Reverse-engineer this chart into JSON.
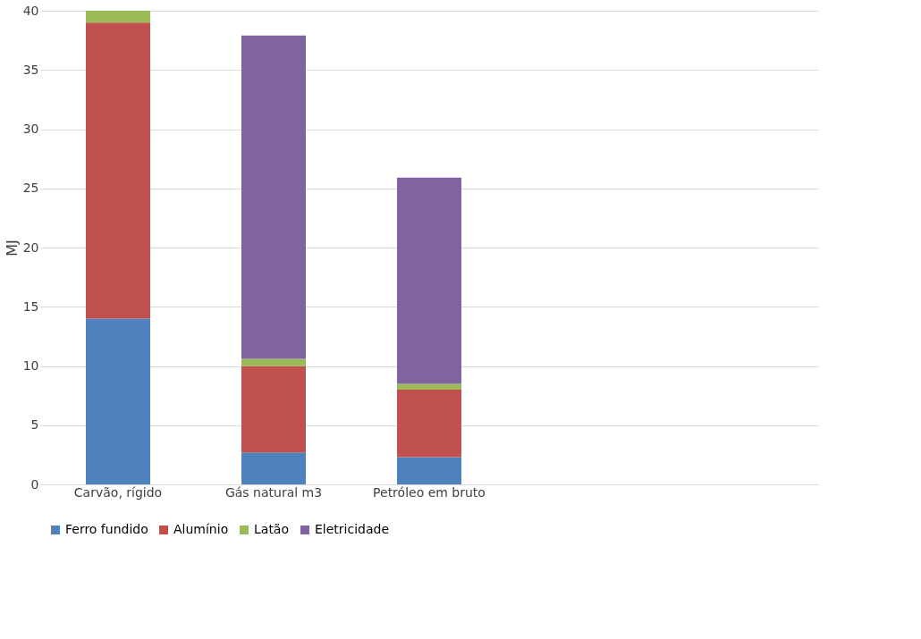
{
  "chart_data": {
    "type": "bar",
    "stacked": true,
    "ylabel": "MJ",
    "categories": [
      "Carvão, rígido",
      "Gás natural m3",
      "Petróleo em bruto",
      null,
      null
    ],
    "series": [
      {
        "name": "Ferro fundido",
        "color": "#4f81bd",
        "values": [
          14,
          2.7,
          2.3,
          null,
          null
        ]
      },
      {
        "name": "Alumínio",
        "color": "#c0504d",
        "values": [
          25,
          7.3,
          5.7,
          null,
          null
        ]
      },
      {
        "name": "Latão",
        "color": "#9bbb59",
        "values": [
          1,
          0.6,
          0.5,
          null,
          null
        ]
      },
      {
        "name": "Eletricidade",
        "color": "#8064a2",
        "values": [
          0,
          27.3,
          17.4,
          null,
          null
        ]
      }
    ],
    "ylim": [
      0,
      40
    ],
    "yticks": [
      0,
      5,
      10,
      15,
      20,
      25,
      30,
      35,
      40
    ],
    "grid": "y",
    "legend": "bottom"
  }
}
